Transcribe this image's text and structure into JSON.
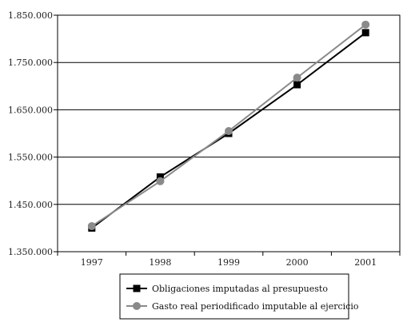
{
  "chart_data": {
    "type": "line",
    "categories": [
      "1997",
      "1998",
      "1999",
      "2000",
      "2001"
    ],
    "ylim": [
      1350000,
      1850000
    ],
    "yticks": [
      1350000,
      1450000,
      1550000,
      1650000,
      1750000,
      1850000
    ],
    "ytick_labels": [
      "1.350.000",
      "1.450.000",
      "1.550.000",
      "1.650.000",
      "1.750.000",
      "1.850.000"
    ],
    "grid": true,
    "legend_position": "bottom",
    "series": [
      {
        "name": "Obligaciones imputadas al presupuesto",
        "values": [
          1400000,
          1508000,
          1600000,
          1703000,
          1813000
        ],
        "color": "#000000",
        "marker": "square"
      },
      {
        "name": "Gasto real periodificado imputable al ejercicio",
        "values": [
          1404000,
          1499000,
          1605000,
          1718000,
          1830000
        ],
        "color": "#8a8a8a",
        "marker": "circle"
      }
    ]
  }
}
